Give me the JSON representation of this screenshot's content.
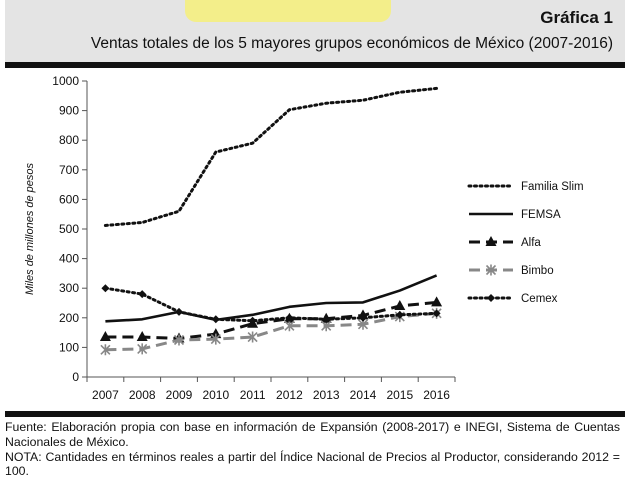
{
  "figure": {
    "label": "Gráfica 1",
    "title": "Ventas totales de los 5 mayores grupos económicos de México (2007-2016)"
  },
  "chart_data": {
    "type": "line",
    "title": "Ventas totales de los 5 mayores grupos económicos de México (2007-2016)",
    "xlabel": "",
    "ylabel": "Miles de millones de pesos",
    "x": [
      "2007",
      "2008",
      "2009",
      "2010",
      "2011",
      "2012",
      "2013",
      "2014",
      "2015",
      "2016"
    ],
    "ylim": [
      0,
      1000
    ],
    "yticks": [
      0,
      100,
      200,
      300,
      400,
      500,
      600,
      700,
      800,
      900,
      1000
    ],
    "grid": false,
    "legend_position": "right",
    "series": [
      {
        "name": "Familia Slim",
        "style": "dotted",
        "marker": "none",
        "color": "#111111",
        "values": [
          512,
          522,
          560,
          760,
          790,
          903,
          925,
          935,
          962,
          975
        ]
      },
      {
        "name": "FEMSA",
        "style": "solid",
        "marker": "none",
        "color": "#111111",
        "values": [
          188,
          195,
          220,
          193,
          210,
          237,
          250,
          252,
          292,
          343
        ]
      },
      {
        "name": "Alfa",
        "style": "dashed",
        "marker": "triangle",
        "color": "#111111",
        "values": [
          135,
          135,
          130,
          145,
          180,
          197,
          197,
          208,
          240,
          252
        ]
      },
      {
        "name": "Bimbo",
        "style": "dashed",
        "marker": "star",
        "color": "#888888",
        "values": [
          92,
          95,
          125,
          128,
          135,
          173,
          173,
          178,
          204,
          215
        ]
      },
      {
        "name": "Cemex",
        "style": "dotted",
        "marker": "diamond",
        "color": "#111111",
        "values": [
          300,
          280,
          220,
          195,
          190,
          200,
          195,
          200,
          210,
          215
        ]
      }
    ]
  },
  "notes": {
    "source": "Fuente: Elaboración propia con base en información de Expansión (2008-2017) e INEGI, Sistema de Cuentas Nacionales de México.",
    "note": "NOTA: Cantidades en términos reales a partir del Índice Nacional de Precios al Productor, considerando 2012 = 100."
  }
}
